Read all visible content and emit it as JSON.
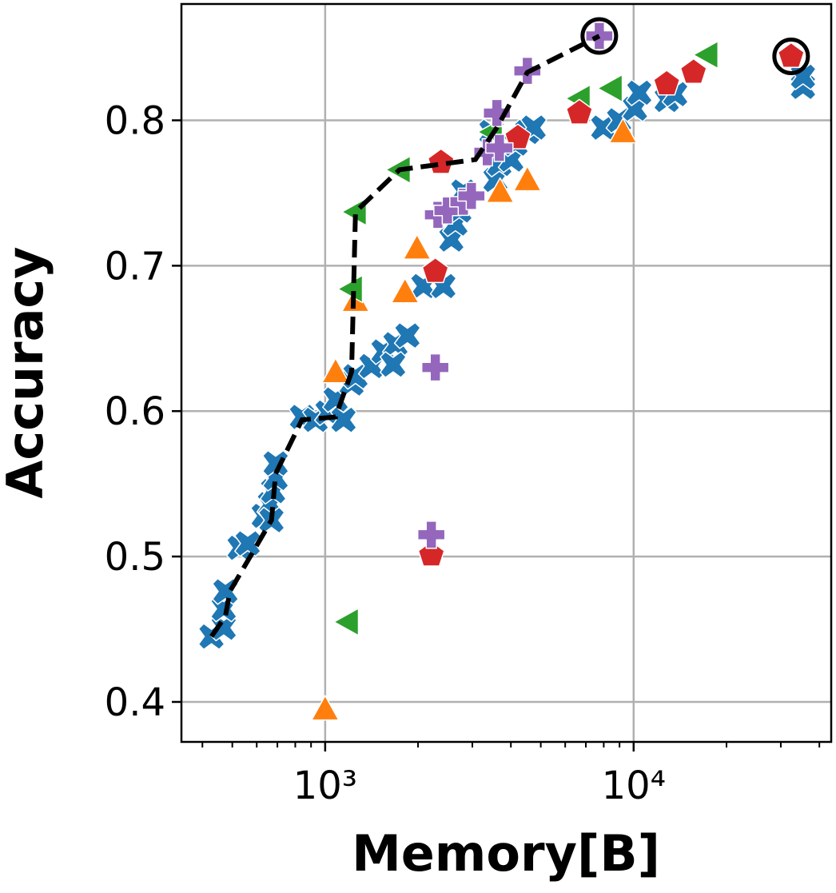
{
  "chart_data": {
    "type": "scatter",
    "xlabel": "Memory[B]",
    "ylabel": "Accuracy",
    "xscale": "log",
    "grid": true,
    "xlim": [
      342,
      43700
    ],
    "ylim": [
      0.3725,
      0.88
    ],
    "xticks": [
      {
        "value": 1000,
        "label": "10³"
      },
      {
        "value": 10000,
        "label": "10⁴"
      }
    ],
    "xminorticks": [
      400,
      500,
      600,
      700,
      800,
      900,
      2000,
      3000,
      4000,
      5000,
      6000,
      7000,
      8000,
      9000,
      20000,
      30000,
      40000
    ],
    "yticks": [
      0.4,
      0.5,
      0.6,
      0.7,
      0.8
    ],
    "series": [
      {
        "color": "#1f77b4",
        "marker": "x",
        "x": [
          428,
          469,
          469,
          475,
          528,
          561,
          632,
          662,
          678,
          691,
          691,
          670,
          841,
          931,
          1018,
          1081,
          1147,
          1218,
          1254,
          1413,
          1546,
          1690,
          1848,
          1661,
          2082,
          2416,
          2565,
          2644,
          2723,
          2806,
          3564,
          3671,
          4012,
          4140,
          4523,
          4742,
          3460,
          7970,
          8971,
          10100,
          10430,
          12800,
          13640,
          35400,
          35400
        ],
        "values": [
          0.445,
          0.451,
          0.464,
          0.476,
          0.506,
          0.509,
          0.528,
          0.536,
          0.545,
          0.554,
          0.564,
          0.525,
          0.596,
          0.594,
          0.599,
          0.608,
          0.594,
          0.619,
          0.624,
          0.631,
          0.641,
          0.646,
          0.652,
          0.632,
          0.686,
          0.686,
          0.718,
          0.729,
          0.738,
          0.751,
          0.759,
          0.77,
          0.773,
          0.784,
          0.792,
          0.795,
          0.792,
          0.795,
          0.8,
          0.808,
          0.819,
          0.814,
          0.818,
          0.823,
          0.83
        ]
      },
      {
        "color": "#ff7f0e",
        "marker": "^",
        "x": [
          1000,
          1081,
          1254,
          1815,
          1985,
          3690,
          4523,
          9237
        ],
        "values": [
          0.395,
          0.627,
          0.676,
          0.682,
          0.712,
          0.751,
          0.759,
          0.792
        ]
      },
      {
        "color": "#2ca02c",
        "marker": "<",
        "x": [
          1182,
          1218,
          1254,
          1741,
          3460,
          6670,
          8470,
          17300
        ],
        "values": [
          0.455,
          0.684,
          0.737,
          0.766,
          0.792,
          0.815,
          0.822,
          0.845
        ]
      },
      {
        "color": "#d62728",
        "marker": "p",
        "x": [
          2209,
          2276,
          2374,
          4215,
          6670,
          12800,
          15640,
          32400
        ],
        "values": [
          0.501,
          0.696,
          0.771,
          0.788,
          0.805,
          0.825,
          0.833,
          0.844
        ]
      },
      {
        "color": "#9467bd",
        "marker": "P",
        "x": [
          2209,
          2276,
          2320,
          2491,
          2806,
          2979,
          3355,
          3671,
          3604,
          4523,
          7740
        ],
        "values": [
          0.515,
          0.63,
          0.735,
          0.738,
          0.744,
          0.748,
          0.778,
          0.781,
          0.805,
          0.834,
          0.858
        ]
      }
    ],
    "lines": [
      {
        "color": "#000000",
        "style": "dashed",
        "x": [
          428,
          475,
          491,
          670,
          691,
          841,
          1081,
          1218,
          1254,
          1741,
          3070,
          3604,
          4523,
          7740
        ],
        "values": [
          0.445,
          0.459,
          0.476,
          0.525,
          0.557,
          0.594,
          0.596,
          0.627,
          0.737,
          0.766,
          0.773,
          0.795,
          0.833,
          0.858
        ]
      }
    ],
    "highlights": {
      "color": "#000000",
      "x": [
        7740,
        32400
      ],
      "values": [
        0.858,
        0.844
      ]
    }
  }
}
